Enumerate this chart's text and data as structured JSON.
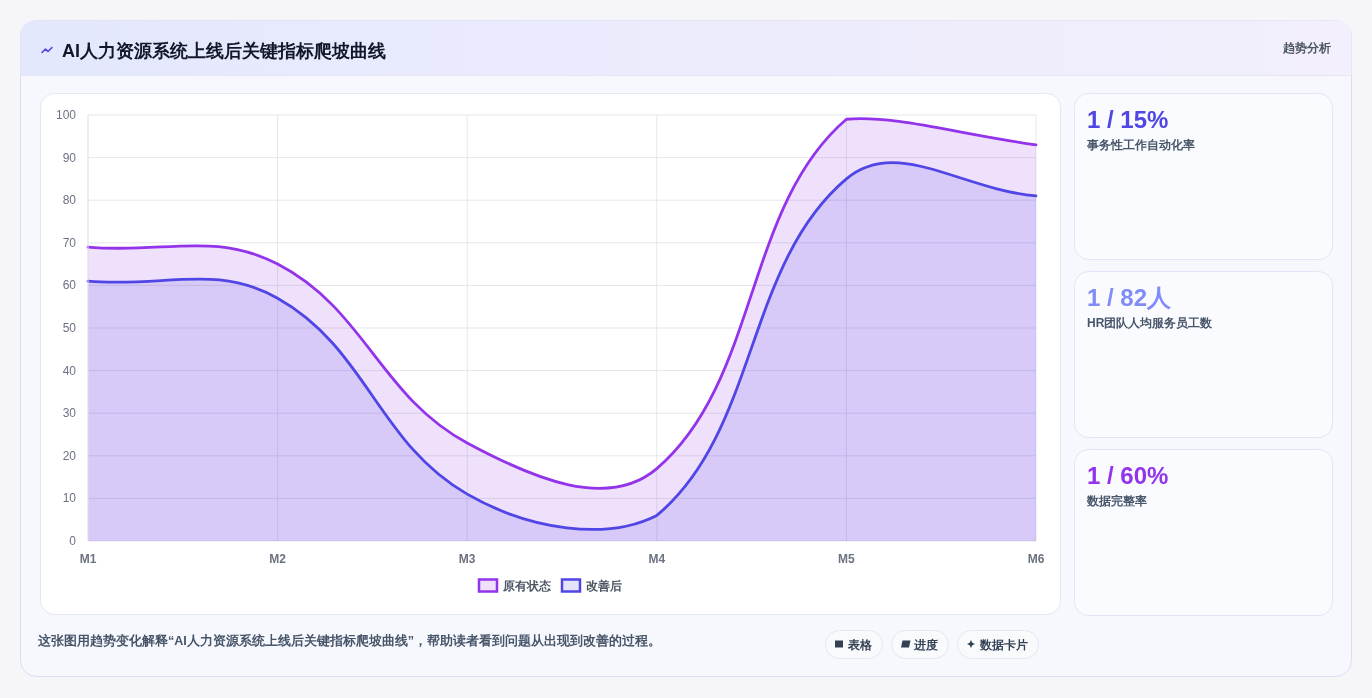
{
  "chart_data": [
    {
      "type": "other",
      "title": "AI人力资源系统上线后关键指标爬坡曲线",
      "subtitle": "趋势分析"
    },
    {
      "type": "area",
      "categories": [
        "M1",
        "M2",
        "M3",
        "M4",
        "M5",
        "M6"
      ],
      "series": [
        {
          "name": "原有状态",
          "color": "#9333ea",
          "values": [
            69,
            65,
            23,
            17,
            99,
            93
          ]
        },
        {
          "name": "改善后",
          "color": "#4f46e5",
          "values": [
            61,
            57,
            11,
            6,
            85,
            81
          ]
        }
      ],
      "ylim": [
        0,
        100
      ],
      "yticks": [
        0,
        10,
        20,
        30,
        40,
        50,
        60,
        70,
        80,
        90,
        100
      ],
      "grid": true,
      "legend": "bottom",
      "annotations": [
        "这张图用趋势变化解释“AI人力资源系统上线后关键指标爬坡曲线”，帮助读者看到问题从出现到改善的过程。",
        "表格",
        "进度",
        "数据卡片"
      ]
    },
    {
      "type": "other",
      "title": "1 / 15%",
      "subtitle": "事务性工作自动化率",
      "color": "#4f46e5"
    },
    {
      "type": "other",
      "title": "1 / 82人",
      "subtitle": "HR团队人均服务员工数",
      "color": "#818cf8"
    },
    {
      "type": "other",
      "title": "1 / 60%",
      "subtitle": "数据完整率",
      "color": "#9333ea"
    }
  ]
}
